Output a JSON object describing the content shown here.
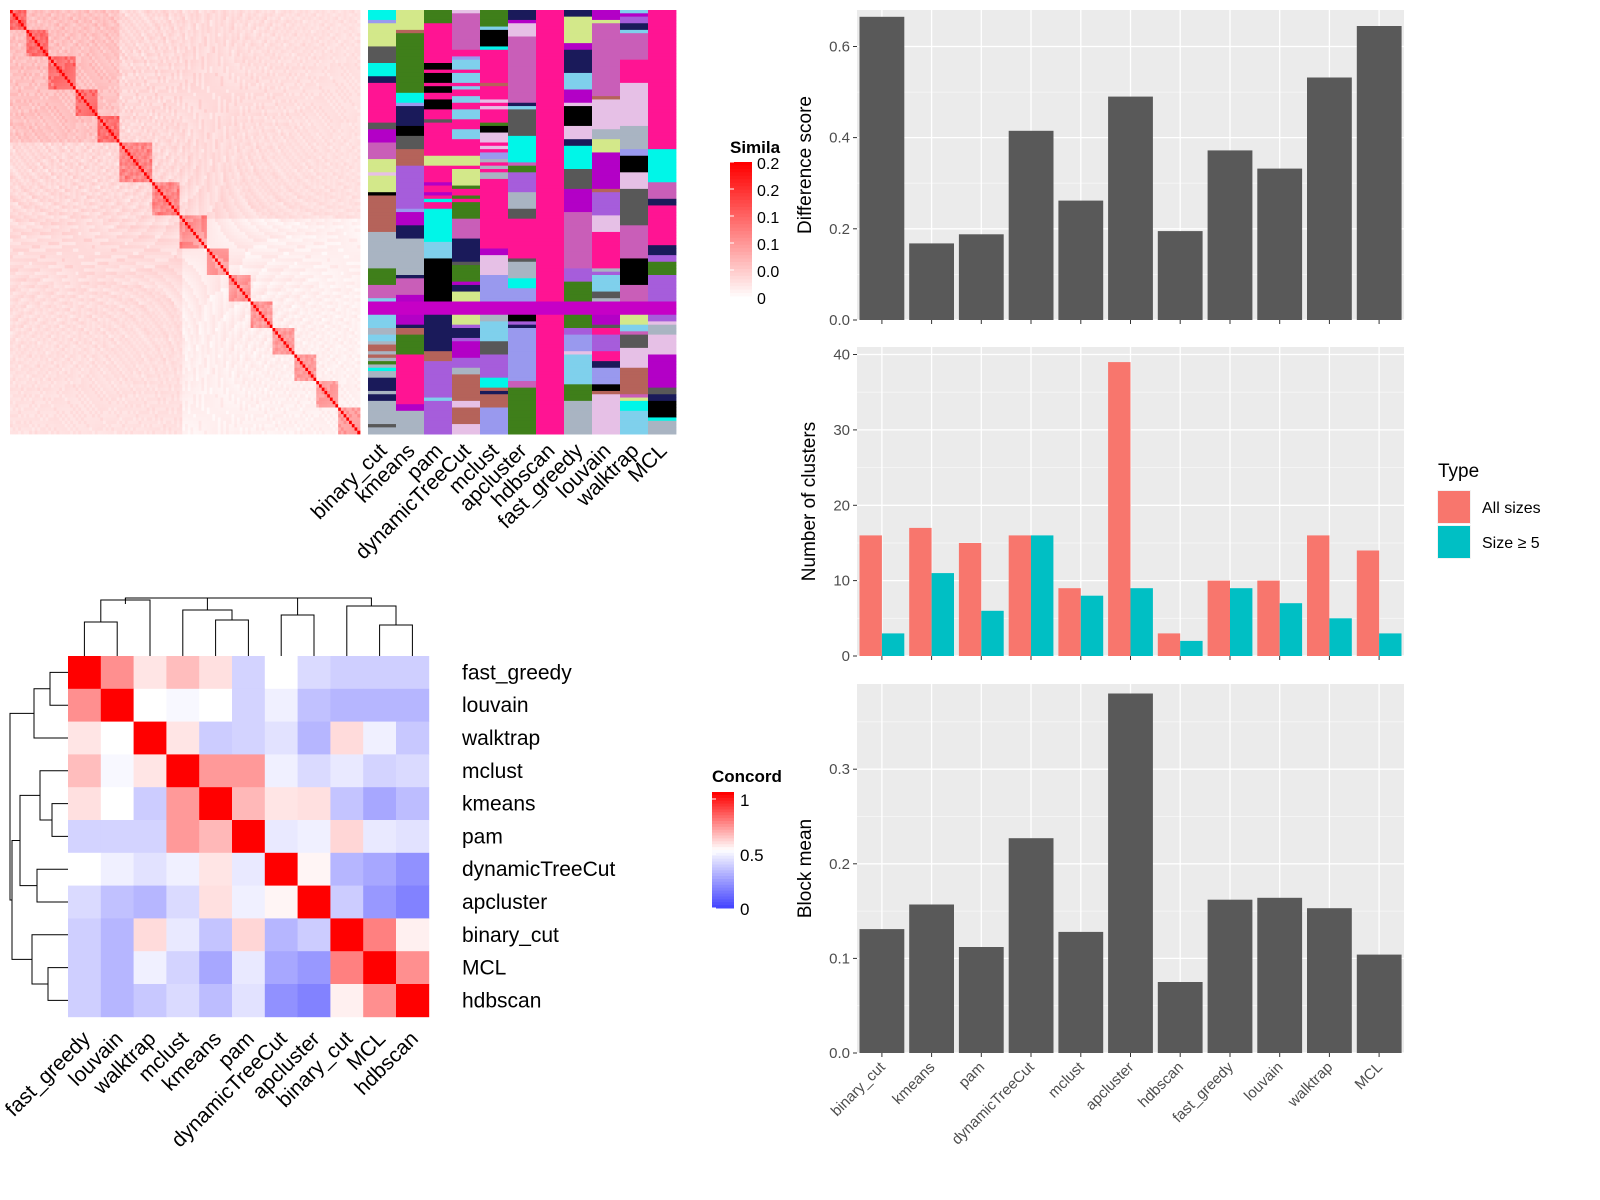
{
  "panel_tl": {
    "methods": [
      "binary_cut",
      "kmeans",
      "pam",
      "dynamicTreeCut",
      "mclust",
      "apcluster",
      "hdbscan",
      "fast_greedy",
      "louvain",
      "walktrap",
      "MCL"
    ],
    "legend": {
      "title": "Simila",
      "ticks": [
        "0.2",
        "0.2",
        "0.1",
        "0.1",
        "0.0",
        "0"
      ]
    }
  },
  "panel_bl": {
    "methods": [
      "fast_greedy",
      "louvain",
      "walktrap",
      "mclust",
      "kmeans",
      "pam",
      "dynamicTreeCut",
      "apcluster",
      "binary_cut",
      "MCL",
      "hdbscan"
    ],
    "legend": {
      "title": "Concord",
      "ticks": [
        "1",
        "0.5",
        "0"
      ]
    }
  },
  "panel_r": {
    "categories": [
      "binary_cut",
      "kmeans",
      "pam",
      "dynamicTreeCut",
      "mclust",
      "apcluster",
      "hdbscan",
      "fast_greedy",
      "louvain",
      "walktrap",
      "MCL"
    ],
    "legend": {
      "title": "Type",
      "items": [
        "All sizes",
        "Size ≥ 5"
      ]
    }
  },
  "colors": {
    "bar": "#595959",
    "panel_bg": "#ebebeb",
    "grid": "#ffffff",
    "all_sizes": "#f8766d",
    "size5": "#00bfc4",
    "heat_red": "#ff0000",
    "heat_blue": "#0000ff"
  },
  "chart_data": [
    {
      "type": "heatmap",
      "title": "",
      "note": "similarity heatmap of 128 terms with per-method cluster-label annotation columns",
      "columns": [
        "binary_cut",
        "kmeans",
        "pam",
        "dynamicTreeCut",
        "mclust",
        "apcluster",
        "hdbscan",
        "fast_greedy",
        "louvain",
        "walktrap",
        "MCL"
      ],
      "legend_title": "Simila",
      "legend_range": [
        0,
        0.2
      ]
    },
    {
      "type": "heatmap",
      "title": "",
      "rows": [
        "fast_greedy",
        "louvain",
        "walktrap",
        "mclust",
        "kmeans",
        "pam",
        "dynamicTreeCut",
        "apcluster",
        "binary_cut",
        "MCL",
        "hdbscan"
      ],
      "columns": [
        "fast_greedy",
        "louvain",
        "walktrap",
        "mclust",
        "kmeans",
        "pam",
        "dynamicTreeCut",
        "apcluster",
        "binary_cut",
        "MCL",
        "hdbscan"
      ],
      "legend_title": "Concord",
      "legend_range": [
        0,
        1
      ],
      "values": [
        [
          1.0,
          0.72,
          0.55,
          0.63,
          0.56,
          0.38,
          0.5,
          0.4,
          0.37,
          0.37,
          0.37
        ],
        [
          0.72,
          1.0,
          0.5,
          0.48,
          0.5,
          0.38,
          0.46,
          0.33,
          0.3,
          0.3,
          0.3
        ],
        [
          0.55,
          0.5,
          1.0,
          0.55,
          0.36,
          0.38,
          0.42,
          0.3,
          0.57,
          0.46,
          0.35
        ],
        [
          0.63,
          0.48,
          0.55,
          1.0,
          0.7,
          0.7,
          0.46,
          0.4,
          0.44,
          0.38,
          0.4
        ],
        [
          0.56,
          0.5,
          0.36,
          0.7,
          1.0,
          0.64,
          0.55,
          0.56,
          0.34,
          0.26,
          0.32
        ],
        [
          0.38,
          0.38,
          0.38,
          0.7,
          0.64,
          1.0,
          0.44,
          0.46,
          0.58,
          0.44,
          0.42
        ],
        [
          0.5,
          0.46,
          0.42,
          0.46,
          0.55,
          0.44,
          1.0,
          0.52,
          0.3,
          0.26,
          0.2
        ],
        [
          0.4,
          0.33,
          0.3,
          0.4,
          0.56,
          0.46,
          0.52,
          1.0,
          0.36,
          0.22,
          0.16
        ],
        [
          0.37,
          0.3,
          0.57,
          0.44,
          0.34,
          0.58,
          0.3,
          0.36,
          1.0,
          0.75,
          0.53
        ],
        [
          0.37,
          0.3,
          0.46,
          0.38,
          0.26,
          0.44,
          0.26,
          0.22,
          0.75,
          1.0,
          0.72
        ],
        [
          0.37,
          0.3,
          0.35,
          0.4,
          0.32,
          0.42,
          0.2,
          0.16,
          0.53,
          0.72,
          1.0
        ]
      ]
    },
    {
      "type": "bar",
      "title": "",
      "xlabel": "",
      "ylabel": "Difference score",
      "categories": [
        "binary_cut",
        "kmeans",
        "pam",
        "dynamicTreeCut",
        "mclust",
        "apcluster",
        "hdbscan",
        "fast_greedy",
        "louvain",
        "walktrap",
        "MCL"
      ],
      "values": [
        0.665,
        0.168,
        0.188,
        0.415,
        0.262,
        0.49,
        0.195,
        0.372,
        0.332,
        0.532,
        0.645
      ],
      "ylim": [
        0,
        0.68
      ],
      "yticks": [
        "0.0",
        "0.2",
        "0.4",
        "0.6"
      ],
      "grid": true
    },
    {
      "type": "bar",
      "title": "",
      "xlabel": "",
      "ylabel": "Number of clusters",
      "categories": [
        "binary_cut",
        "kmeans",
        "pam",
        "dynamicTreeCut",
        "mclust",
        "apcluster",
        "hdbscan",
        "fast_greedy",
        "louvain",
        "walktrap",
        "MCL"
      ],
      "series": [
        {
          "name": "All sizes",
          "values": [
            16,
            17,
            15,
            16,
            9,
            39,
            3,
            10,
            10,
            16,
            14
          ]
        },
        {
          "name": "Size ≥ 5",
          "values": [
            3,
            11,
            6,
            16,
            8,
            9,
            2,
            9,
            7,
            5,
            3
          ]
        }
      ],
      "ylim": [
        0,
        41
      ],
      "yticks": [
        "0",
        "10",
        "20",
        "30",
        "40"
      ],
      "legend": "right",
      "grid": true
    },
    {
      "type": "bar",
      "title": "",
      "xlabel": "",
      "ylabel": "Block mean",
      "categories": [
        "binary_cut",
        "kmeans",
        "pam",
        "dynamicTreeCut",
        "mclust",
        "apcluster",
        "hdbscan",
        "fast_greedy",
        "louvain",
        "walktrap",
        "MCL"
      ],
      "values": [
        0.131,
        0.157,
        0.112,
        0.227,
        0.128,
        0.38,
        0.075,
        0.162,
        0.164,
        0.153,
        0.104
      ],
      "ylim": [
        0,
        0.39
      ],
      "yticks": [
        "0.0",
        "0.1",
        "0.2",
        "0.3"
      ],
      "grid": true
    }
  ]
}
